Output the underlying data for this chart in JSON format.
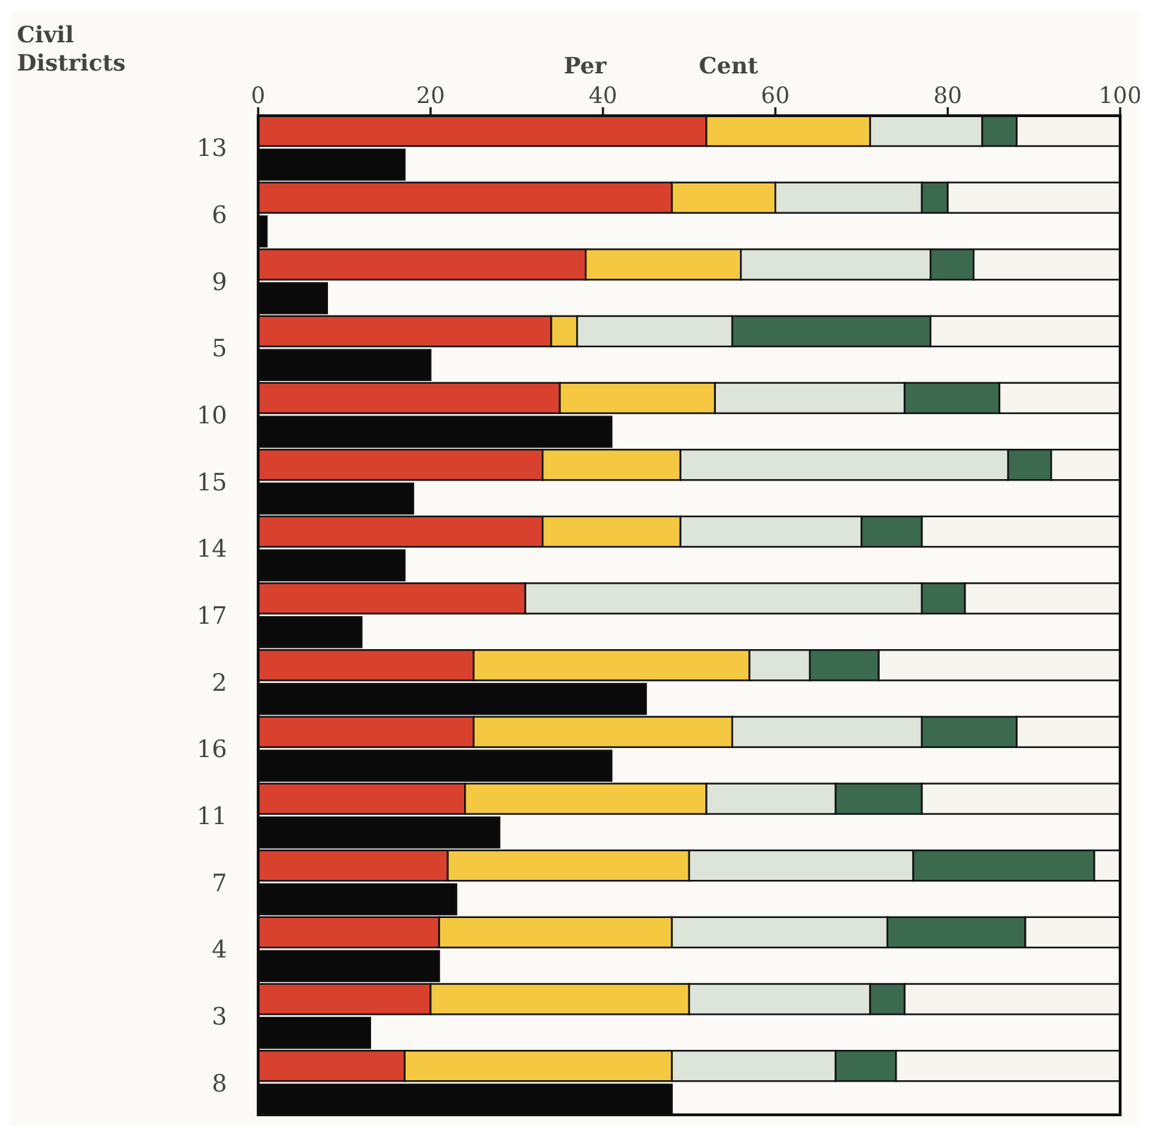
{
  "chart_data": [
    {
      "type": "bar",
      "orientation": "horizontal",
      "stacked": true,
      "xlabel": "Per Cent",
      "ylabel": "Civil\nDistricts",
      "categories": [
        "13",
        "6",
        "9",
        "5",
        "10",
        "15",
        "14",
        "17",
        "2",
        "16",
        "11",
        "7",
        "4",
        "3",
        "8"
      ],
      "xlim": [
        0,
        100
      ],
      "xticks": [
        0,
        20,
        40,
        60,
        80,
        100
      ],
      "series": [
        {
          "color": "#d9412f",
          "values": [
            52,
            48,
            38,
            34,
            35,
            33,
            33,
            31,
            25,
            25,
            24,
            22,
            21,
            20,
            17
          ]
        },
        {
          "color": "#f5c842",
          "values": [
            19,
            12,
            18,
            3,
            18,
            16,
            16,
            null,
            32,
            30,
            28,
            28,
            27,
            30,
            31
          ]
        },
        {
          "color": "#dde5da",
          "values": [
            13,
            17,
            22,
            18,
            22,
            38,
            21,
            46,
            7,
            22,
            15,
            26,
            25,
            21,
            19
          ]
        },
        {
          "color": "#3b6a4e",
          "values": [
            4,
            3,
            5,
            23,
            11,
            5,
            7,
            5,
            8,
            11,
            10,
            21,
            16,
            4,
            7
          ]
        },
        {
          "color": "#f7f5ef",
          "values": [
            12,
            20,
            17,
            22,
            14,
            8,
            23,
            18,
            28,
            12,
            23,
            3,
            11,
            25,
            26
          ]
        }
      ]
    },
    {
      "type": "bar",
      "orientation": "horizontal",
      "tick_labels": false,
      "categories": [
        "13",
        "6",
        "9",
        "5",
        "10",
        "15",
        "14",
        "17",
        "2",
        "16",
        "11",
        "7",
        "4",
        "3",
        "8"
      ],
      "xlim": [
        0,
        100
      ],
      "series": [
        {
          "color": "#0a0a0a",
          "values": [
            17,
            1,
            8,
            20,
            41,
            18,
            17,
            12,
            45,
            41,
            28,
            23,
            21,
            13,
            48
          ]
        }
      ]
    }
  ]
}
